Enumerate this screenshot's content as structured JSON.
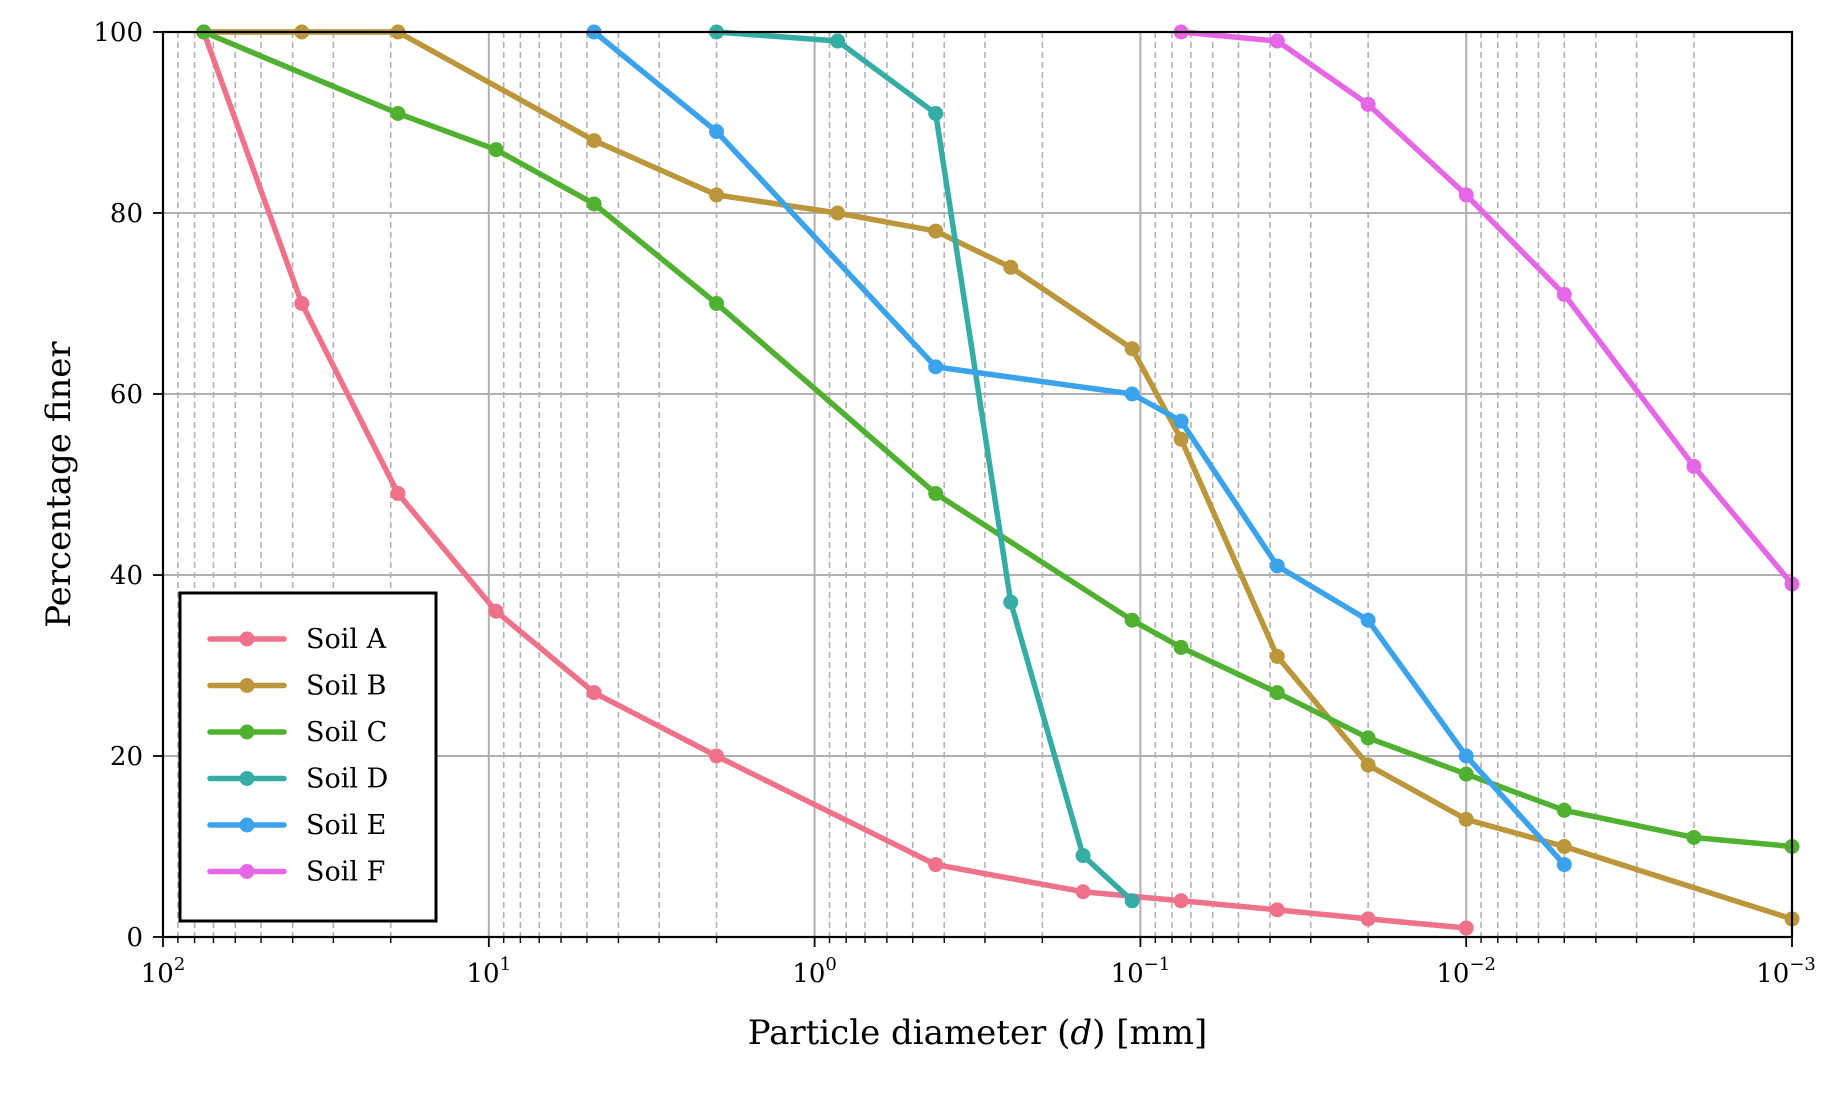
{
  "chart_data": {
    "type": "line",
    "title": "",
    "xlabel": "Particle diameter (d) [mm]",
    "ylabel": "Percentage finer",
    "x_scale": "log",
    "x_reversed": true,
    "xlim": [
      100,
      0.001
    ],
    "ylim": [
      0,
      100
    ],
    "x_ticks": [
      {
        "base": "10",
        "exp": "2"
      },
      {
        "base": "10",
        "exp": "1"
      },
      {
        "base": "10",
        "exp": "0"
      },
      {
        "base": "10",
        "exp": "−1"
      },
      {
        "base": "10",
        "exp": "−2"
      },
      {
        "base": "10",
        "exp": "−3"
      }
    ],
    "y_ticks": [
      "0",
      "20",
      "40",
      "60",
      "80",
      "100"
    ],
    "grid": {
      "major": "solid",
      "minor_x": "dashed"
    },
    "legend": {
      "position": "lower-left"
    },
    "series": [
      {
        "name": "Soil A",
        "color": "#f0718a",
        "x": [
          75,
          37.5,
          19,
          9.5,
          4.75,
          2.0,
          0.425,
          0.15,
          0.075,
          0.038,
          0.02,
          0.01
        ],
        "y": [
          100,
          70,
          49,
          36,
          27,
          20,
          8,
          5,
          4,
          3,
          2,
          1
        ]
      },
      {
        "name": "Soil B",
        "color": "#bb963a",
        "x": [
          75,
          37.5,
          19,
          4.75,
          2.0,
          0.85,
          0.425,
          0.25,
          0.106,
          0.075,
          0.038,
          0.02,
          0.01,
          0.005,
          0.001
        ],
        "y": [
          100,
          100,
          100,
          88,
          82,
          80,
          78,
          74,
          65,
          55,
          31,
          19,
          13,
          10,
          2
        ]
      },
      {
        "name": "Soil C",
        "color": "#50b131",
        "x": [
          75,
          19,
          9.5,
          4.75,
          2.0,
          0.425,
          0.106,
          0.075,
          0.038,
          0.02,
          0.01,
          0.005,
          0.002,
          0.001
        ],
        "y": [
          100,
          91,
          87,
          81,
          70,
          49,
          35,
          32,
          27,
          22,
          18,
          14,
          11,
          10
        ]
      },
      {
        "name": "Soil D",
        "color": "#36ada4",
        "x": [
          2.0,
          0.85,
          0.425,
          0.25,
          0.15,
          0.106
        ],
        "y": [
          100,
          99,
          91,
          37,
          9,
          4
        ]
      },
      {
        "name": "Soil E",
        "color": "#3ba3ec",
        "x": [
          4.75,
          2.0,
          0.425,
          0.106,
          0.075,
          0.038,
          0.02,
          0.01,
          0.005
        ],
        "y": [
          100,
          89,
          63,
          60,
          57,
          41,
          35,
          20,
          8
        ]
      },
      {
        "name": "Soil F",
        "color": "#e567e6",
        "x": [
          0.075,
          0.038,
          0.02,
          0.01,
          0.005,
          0.002,
          0.001
        ],
        "y": [
          100,
          99,
          92,
          82,
          71,
          52,
          39
        ]
      }
    ]
  }
}
